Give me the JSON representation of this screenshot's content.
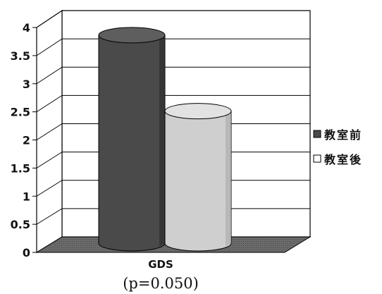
{
  "chart_data": {
    "type": "bar",
    "style": "3d-cylinder",
    "categories": [
      "GDS"
    ],
    "annotation": "(p=0.050)",
    "series": [
      {
        "name": "教室前",
        "values": [
          3.7
        ],
        "color": "#4a4a4a"
      },
      {
        "name": "教室後",
        "values": [
          2.35
        ],
        "color": "#cfcfcf"
      }
    ],
    "ylim": [
      0,
      4
    ],
    "yticks": [
      "0",
      "0.5",
      "1",
      "1.5",
      "2",
      "2.5",
      "3",
      "3.5",
      "4"
    ],
    "grid": true,
    "legend_position": "right"
  }
}
